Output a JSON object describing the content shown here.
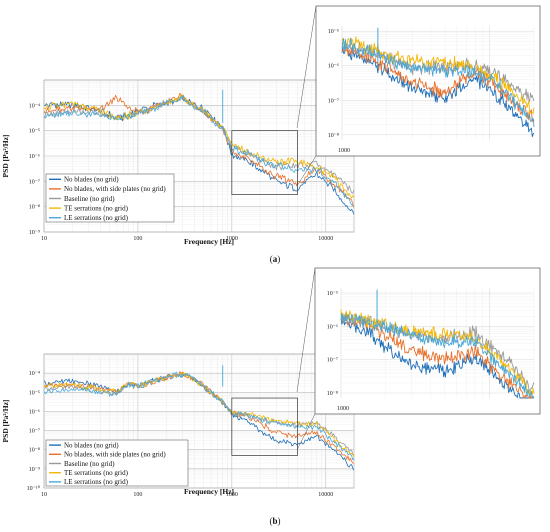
{
  "chart_data": [
    {
      "id": "a",
      "type": "line",
      "panel_label": "a",
      "xlabel": "Frequency [Hz]",
      "ylabel": "PSD [Pa²/Hz]",
      "x_scale": "log",
      "y_scale": "log",
      "xlim": [
        10,
        20000
      ],
      "ylim": [
        1e-09,
        0.001
      ],
      "xticks": [
        10,
        100,
        1000,
        10000
      ],
      "xtick_labels": [
        "10",
        "100",
        "1000",
        "10000"
      ],
      "yticks": [
        1e-09,
        1e-08,
        1e-07,
        1e-06,
        1e-05,
        0.0001
      ],
      "ytick_labels": [
        "10⁻⁹",
        "10⁻⁸",
        "10⁻⁷",
        "10⁻⁶",
        "10⁻⁵",
        "10⁻⁴"
      ],
      "grid": true,
      "legend_position": "bottom-left",
      "zoom_region": {
        "x": [
          1000,
          5000
        ],
        "y": [
          3e-08,
          1e-05
        ]
      },
      "inset": {
        "xlim": [
          1000,
          20000
        ],
        "ylim": [
          1e-08,
          1e-05
        ],
        "xtick_labels": [
          "1000"
        ],
        "ytick_labels": [
          "10⁻⁵",
          "10⁻⁶",
          "10⁻⁷",
          "10⁻⁸"
        ]
      },
      "x": [
        10,
        20,
        40,
        60,
        80,
        100,
        150,
        200,
        300,
        400,
        500,
        600,
        800,
        1000,
        1500,
        2000,
        3000,
        5000,
        8000,
        12000,
        20000
      ],
      "series": [
        {
          "name": "No blades (no grid)",
          "color": "#1f6fb8",
          "values": [
            0.0001,
            0.00011,
            6e-05,
            3e-05,
            4e-05,
            6e-05,
            0.0001,
            0.00012,
            0.00018,
            0.0001,
            7e-05,
            4e-05,
            1.5e-05,
            1.2e-06,
            6e-07,
            3e-07,
            1e-07,
            5e-08,
            2e-07,
            5e-08,
            5e-09
          ]
        },
        {
          "name": "No blades, with side plates (no grid)",
          "color": "#e8702a",
          "values": [
            6e-05,
            8e-05,
            7e-05,
            0.0002,
            8e-05,
            5e-05,
            8e-05,
            0.00015,
            0.00022,
            8e-05,
            6e-05,
            3e-05,
            1.2e-05,
            1.5e-06,
            8e-07,
            4e-07,
            1.5e-07,
            8e-08,
            3e-07,
            8e-08,
            1.2e-08
          ]
        },
        {
          "name": "Baseline (no grid)",
          "color": "#9a9a9a",
          "values": [
            4e-05,
            6e-05,
            5e-05,
            3e-05,
            4e-05,
            5e-05,
            8e-05,
            0.00013,
            0.0002,
            9e-05,
            6e-05,
            3e-05,
            1.4e-05,
            2e-06,
            1.2e-06,
            7e-07,
            4e-07,
            4e-07,
            5e-07,
            2e-07,
            4e-08
          ]
        },
        {
          "name": "TE serrations (no grid)",
          "color": "#f2b705",
          "values": [
            8e-05,
            0.00012,
            6e-05,
            3e-05,
            4e-05,
            5e-05,
            8e-05,
            0.00013,
            0.0002,
            9e-05,
            6e-05,
            3e-05,
            1.4e-05,
            2.5e-06,
            1.5e-06,
            9e-07,
            6e-07,
            6e-07,
            4e-07,
            1.5e-07,
            2e-08
          ]
        },
        {
          "name": "LE serrations (no grid)",
          "color": "#4aa8d8",
          "values": [
            4e-05,
            5e-05,
            4e-05,
            3e-05,
            4e-05,
            5e-05,
            8e-05,
            0.00012,
            0.00019,
            9e-05,
            6e-05,
            3e-05,
            1.3e-05,
            2e-06,
            1.2e-06,
            7e-07,
            4e-07,
            3e-07,
            3e-07,
            1e-07,
            1e-08
          ]
        }
      ]
    },
    {
      "id": "b",
      "type": "line",
      "panel_label": "b",
      "xlabel": "Frequency [Hz]",
      "ylabel": "PSD [Pa²/Hz]",
      "x_scale": "log",
      "y_scale": "log",
      "xlim": [
        10,
        20000
      ],
      "ylim": [
        1e-10,
        0.001
      ],
      "xticks": [
        10,
        100,
        1000,
        10000
      ],
      "xtick_labels": [
        "10",
        "100",
        "1000",
        "10000"
      ],
      "yticks": [
        1e-10,
        1e-09,
        1e-08,
        1e-07,
        1e-06,
        1e-05,
        0.0001
      ],
      "ytick_labels": [
        "10⁻¹⁰",
        "10⁻⁹",
        "10⁻⁸",
        "10⁻⁷",
        "10⁻⁶",
        "10⁻⁵",
        "10⁻⁴"
      ],
      "grid": true,
      "legend_position": "bottom-left",
      "zoom_region": {
        "x": [
          1000,
          5000
        ],
        "y": [
          5e-09,
          5e-06
        ]
      },
      "inset": {
        "xlim": [
          1000,
          20000
        ],
        "ylim": [
          1e-08,
          1e-05
        ],
        "xtick_labels": [
          "1000"
        ],
        "ytick_labels": [
          "10⁻⁵",
          "10⁻⁶",
          "10⁻⁷",
          "10⁻⁸"
        ]
      },
      "x": [
        10,
        20,
        40,
        60,
        80,
        100,
        150,
        200,
        300,
        400,
        500,
        600,
        800,
        1000,
        1500,
        2000,
        3000,
        5000,
        8000,
        12000,
        20000
      ],
      "series": [
        {
          "name": "No blades (no grid)",
          "color": "#1f6fb8",
          "values": [
            3e-05,
            4e-05,
            2e-05,
            1e-05,
            3e-05,
            2e-05,
            4e-05,
            6e-05,
            8e-05,
            5e-05,
            2e-05,
            1e-05,
            3e-06,
            7e-07,
            3e-07,
            1e-07,
            3e-08,
            2e-08,
            5e-08,
            1e-08,
            1e-09
          ]
        },
        {
          "name": "No blades, with side plates (no grid)",
          "color": "#e8702a",
          "values": [
            2e-05,
            2.5e-05,
            1.5e-05,
            1e-05,
            3e-05,
            2e-05,
            4e-05,
            6e-05,
            9e-05,
            5e-05,
            2e-05,
            1e-05,
            3e-06,
            8e-07,
            5e-07,
            2.5e-07,
            8e-08,
            5e-08,
            8e-08,
            1.5e-08,
            2e-09
          ]
        },
        {
          "name": "Baseline (no grid)",
          "color": "#9a9a9a",
          "values": [
            1.5e-05,
            2e-05,
            1.2e-05,
            8e-06,
            2.5e-05,
            2e-05,
            4e-05,
            6e-05,
            9e-05,
            5e-05,
            2e-05,
            1e-05,
            3e-06,
            8e-07,
            6e-07,
            4e-07,
            2.5e-07,
            2e-07,
            3e-07,
            6e-08,
            6e-09
          ]
        },
        {
          "name": "TE serrations (no grid)",
          "color": "#f2b705",
          "values": [
            2e-05,
            2.5e-05,
            1.5e-05,
            1e-05,
            3e-05,
            2e-05,
            4e-05,
            6e-05,
            9e-05,
            5e-05,
            2e-05,
            1e-05,
            3e-06,
            9e-07,
            7e-07,
            5e-07,
            3e-07,
            2.5e-07,
            2e-07,
            4e-08,
            4e-09
          ]
        },
        {
          "name": "LE serrations (no grid)",
          "color": "#4aa8d8",
          "values": [
            1e-05,
            1.5e-05,
            1e-05,
            8e-06,
            2.5e-05,
            2e-05,
            4e-05,
            6e-05,
            9e-05,
            5e-05,
            2e-05,
            1e-05,
            3e-06,
            8e-07,
            6e-07,
            4e-07,
            2.5e-07,
            1.5e-07,
            1.5e-07,
            3e-08,
            3e-09
          ]
        }
      ]
    }
  ]
}
